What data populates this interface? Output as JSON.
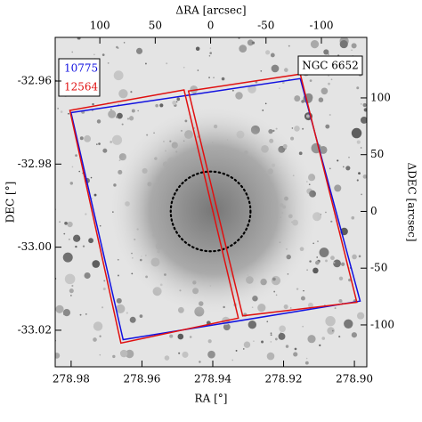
{
  "chart_data": {
    "type": "sky_map",
    "label": "NGC 6652",
    "xlabel": "RA [°]",
    "ylabel": "DEC [°]",
    "x2label": "ΔRA [arcsec]",
    "y2label": "ΔDEC [arcsec]",
    "xlim": [
      278.9845,
      278.8965
    ],
    "xticks": [
      278.98,
      278.96,
      278.94,
      278.92,
      {
        "value": 278.9,
        "label": "278.90"
      }
    ],
    "ylim": [
      -33.0288,
      -32.9495
    ],
    "yticks": [
      -33.02,
      {
        "value": -33,
        "label": "-33.00"
      },
      -32.98,
      -32.96
    ],
    "x2lim": [
      140.3,
      -141
    ],
    "x2ticks": [
      100,
      50,
      0,
      -50,
      -100
    ],
    "y2lim": [
      -136.9,
      153.3
    ],
    "y2ticks": [
      100,
      50,
      0,
      -50,
      -100
    ],
    "series": [
      {
        "name": "10775",
        "color": "#1010e0",
        "polygons": [
          {
            "x": [
              126,
              -81,
              -135,
              79
            ],
            "y": [
              87,
              117,
              -79,
              -113
            ]
          }
        ]
      },
      {
        "name": "12564",
        "color": "#e01010",
        "polygons": [
          {
            "x": [
              127,
              24,
              -25,
              81
            ],
            "y": [
              89,
              107,
              -94,
              -116
            ]
          },
          {
            "x": [
              20,
              -81,
              -132,
              -29
            ],
            "y": [
              106,
              121,
              -80,
              -92
            ]
          }
        ]
      }
    ],
    "circle": {
      "x": 0,
      "y": 0,
      "r": 36
    }
  }
}
